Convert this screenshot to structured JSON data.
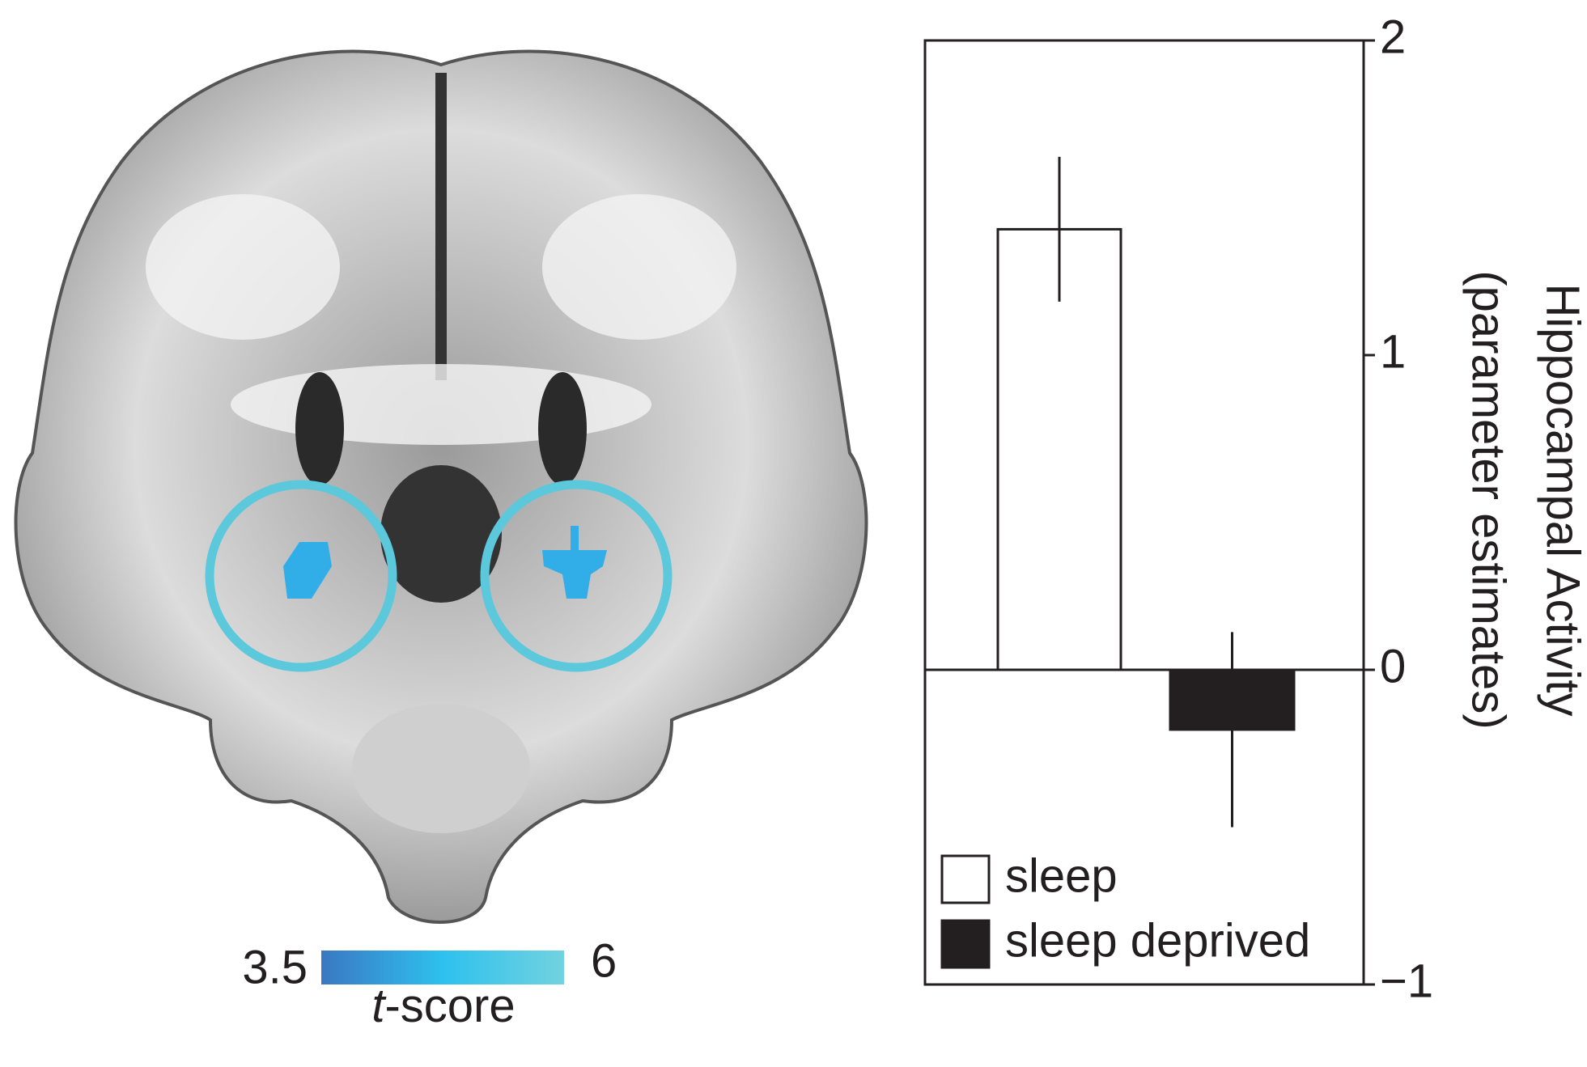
{
  "chart_data": {
    "type": "bar",
    "ylabel": [
      "Hippocampal Activity",
      "(parameter estimates)"
    ],
    "series": [
      {
        "name": "sleep",
        "color": "#ffffff",
        "values": [
          1.4
        ],
        "errors": [
          0.23
        ]
      },
      {
        "name": "sleep deprived",
        "color": "#231f20",
        "values": [
          -0.19
        ],
        "errors": [
          0.31
        ]
      }
    ],
    "ylim": [
      -1,
      2
    ],
    "yticks": [
      {
        "value": -1,
        "label": "−1"
      },
      0,
      1,
      2
    ],
    "legend": "lower-left",
    "colorbar": {
      "ticks": [
        3.5,
        6
      ],
      "label_italic": "t",
      "label": "-score",
      "colors": [
        "#3a78c2",
        "#2ec1ee",
        "#72d2df"
      ]
    }
  }
}
